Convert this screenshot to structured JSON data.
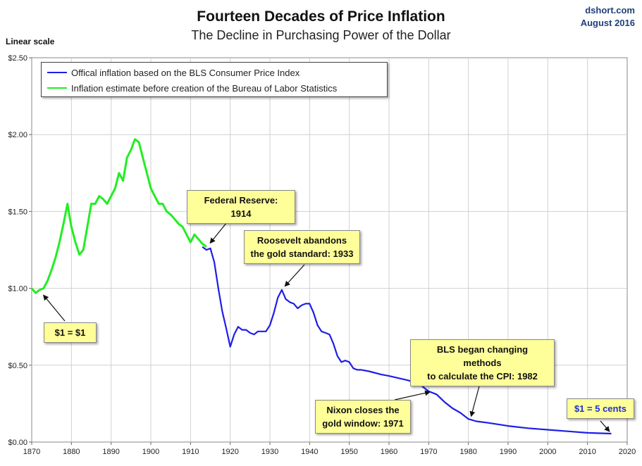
{
  "header": {
    "title": "Fourteen Decades of Price Inflation",
    "subtitle": "The Decline in Purchasing Power of the Dollar",
    "source_line1": "dshort.com",
    "source_line2": "August 2016",
    "scale_label": "Linear scale"
  },
  "colors": {
    "bls_series": "#1e1ee8",
    "estimate_series": "#22ee22",
    "callout_bg": "#ffff99",
    "grid": "#d0d0d0"
  },
  "callouts": {
    "dollar_start": "$1 = $1",
    "federal_reserve": "Federal Reserve: 1914",
    "roosevelt": "Roosevelt abandons\nthe gold standard: 1933",
    "nixon": "Nixon closes the\ngold window: 1971",
    "bls_methods": "BLS began  changing methods\nto calculate the CPI: 1982",
    "dollar_end": "$1 = 5 cents"
  },
  "chart_data": {
    "type": "line",
    "title": "Fourteen Decades of Price Inflation",
    "subtitle": "The Decline in Purchasing Power of the Dollar",
    "xlabel": "",
    "ylabel": "",
    "xlim": [
      1870,
      2020
    ],
    "ylim": [
      0,
      2.5
    ],
    "x_ticks": [
      1870,
      1880,
      1890,
      1900,
      1910,
      1920,
      1930,
      1940,
      1950,
      1960,
      1970,
      1980,
      1990,
      2000,
      2010,
      2020
    ],
    "y_ticks": [
      0,
      0.5,
      1.0,
      1.5,
      2.0,
      2.5
    ],
    "x_tick_labels": [
      "1870",
      "1880",
      "1890",
      "1900",
      "1910",
      "1920",
      "1930",
      "1940",
      "1950",
      "1960",
      "1970",
      "1980",
      "1990",
      "2000",
      "2010",
      "2020"
    ],
    "y_tick_labels": [
      "$0.00",
      "$0.50",
      "$1.00",
      "$1.50",
      "$2.00",
      "$2.50"
    ],
    "grid": true,
    "legend_position": "top-left",
    "series": [
      {
        "name": "Offical inflation based on the BLS Consumer Price Index",
        "color": "#1e1ee8",
        "x": [
          1913,
          1914,
          1915,
          1916,
          1917,
          1918,
          1919,
          1920,
          1921,
          1922,
          1923,
          1924,
          1925,
          1926,
          1927,
          1928,
          1929,
          1930,
          1931,
          1932,
          1933,
          1934,
          1935,
          1936,
          1937,
          1938,
          1939,
          1940,
          1941,
          1942,
          1943,
          1944,
          1945,
          1946,
          1947,
          1948,
          1949,
          1950,
          1951,
          1952,
          1953,
          1955,
          1958,
          1960,
          1965,
          1968,
          1970,
          1972,
          1974,
          1976,
          1978,
          1980,
          1982,
          1985,
          1990,
          1995,
          2000,
          2005,
          2010,
          2016
        ],
        "y": [
          1.27,
          1.25,
          1.26,
          1.17,
          1.0,
          0.85,
          0.74,
          0.62,
          0.7,
          0.75,
          0.73,
          0.73,
          0.71,
          0.7,
          0.72,
          0.72,
          0.72,
          0.76,
          0.84,
          0.94,
          0.99,
          0.93,
          0.91,
          0.9,
          0.87,
          0.89,
          0.9,
          0.9,
          0.84,
          0.76,
          0.72,
          0.71,
          0.7,
          0.64,
          0.56,
          0.52,
          0.53,
          0.52,
          0.48,
          0.47,
          0.47,
          0.46,
          0.44,
          0.43,
          0.4,
          0.37,
          0.33,
          0.31,
          0.26,
          0.22,
          0.19,
          0.15,
          0.135,
          0.125,
          0.105,
          0.09,
          0.08,
          0.07,
          0.06,
          0.055
        ]
      },
      {
        "name": "Inflation estimate before creation of the Bureau of Labor Statistics",
        "color": "#22ee22",
        "x": [
          1870,
          1871,
          1872,
          1873,
          1874,
          1875,
          1876,
          1877,
          1878,
          1879,
          1880,
          1881,
          1882,
          1883,
          1884,
          1885,
          1886,
          1887,
          1888,
          1889,
          1890,
          1891,
          1892,
          1893,
          1894,
          1895,
          1896,
          1897,
          1898,
          1899,
          1900,
          1901,
          1902,
          1903,
          1904,
          1905,
          1906,
          1907,
          1908,
          1909,
          1910,
          1911,
          1912,
          1913,
          1914
        ],
        "y": [
          1.0,
          0.97,
          0.99,
          1.0,
          1.05,
          1.12,
          1.2,
          1.3,
          1.42,
          1.55,
          1.4,
          1.3,
          1.22,
          1.25,
          1.4,
          1.55,
          1.55,
          1.6,
          1.58,
          1.55,
          1.6,
          1.65,
          1.75,
          1.7,
          1.85,
          1.9,
          1.97,
          1.95,
          1.85,
          1.75,
          1.65,
          1.6,
          1.55,
          1.55,
          1.5,
          1.48,
          1.45,
          1.42,
          1.4,
          1.35,
          1.3,
          1.35,
          1.32,
          1.29,
          1.27
        ]
      }
    ],
    "annotations": [
      {
        "text": "$1 = $1",
        "x": 1872.5,
        "y": 0.97
      },
      {
        "text": "Federal Reserve: 1914",
        "x": 1914.5,
        "y": 1.28
      },
      {
        "text": "Roosevelt abandons the gold standard: 1933",
        "x": 1933.3,
        "y": 1.0
      },
      {
        "text": "Nixon closes the gold window: 1971",
        "x": 1971,
        "y": 0.33
      },
      {
        "text": "BLS began  changing methods to calculate the CPI: 1982",
        "x": 1980.5,
        "y": 0.15
      },
      {
        "text": "$1 = 5 cents",
        "x": 2016,
        "y": 0.055
      }
    ]
  }
}
